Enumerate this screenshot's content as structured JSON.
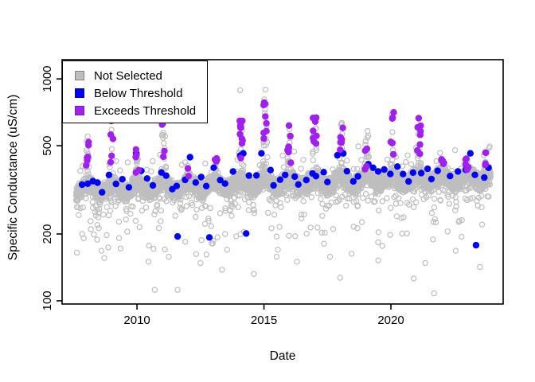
{
  "figure": {
    "background": "#FFFFFF"
  },
  "legend": {
    "items": [
      {
        "label": "Not Selected",
        "color": "#BEBEBE",
        "border": "#7F7F7F"
      },
      {
        "label": "Below Threshold",
        "color": "#0000FF",
        "border": "#00009E"
      },
      {
        "label": "Exceeds Threshold",
        "color": "#A020F0",
        "border": "#7A1ABD"
      }
    ]
  },
  "chart_data": {
    "type": "scatter",
    "title": "",
    "xlabel": "Date",
    "ylabel": "Specific Conductance (uS/cm)",
    "x_axis": {
      "domain": [
        2007.05,
        2024.42
      ],
      "ticks": [
        {
          "value": 2010,
          "label": "2010"
        },
        {
          "value": 2015,
          "label": "2015"
        },
        {
          "value": 2020,
          "label": "2020"
        }
      ]
    },
    "y_axis": {
      "domain": [
        96.7,
        1221
      ],
      "scale": "log10",
      "ticks": [
        {
          "value": 100,
          "label": "100"
        },
        {
          "value": 200,
          "label": "200"
        },
        {
          "value": 500,
          "label": "500"
        },
        {
          "value": 1000,
          "label": "1000"
        }
      ]
    },
    "grid": false,
    "legend_position": "topleft",
    "seed": 1337,
    "winter_spikes": [
      [
        2008.05,
        630,
        6,
        380,
        600
      ],
      [
        2009.0,
        780,
        7,
        420,
        740
      ],
      [
        2010.0,
        540,
        5,
        360,
        510
      ],
      [
        2011.05,
        800,
        8,
        400,
        690
      ],
      [
        2012.0,
        430,
        2,
        350,
        420
      ],
      [
        2013.1,
        470,
        4,
        360,
        450
      ],
      [
        2014.1,
        870,
        11,
        430,
        840
      ],
      [
        2015.05,
        1040,
        8,
        520,
        790
      ],
      [
        2016.0,
        720,
        7,
        400,
        680
      ],
      [
        2017.0,
        860,
        8,
        440,
        720
      ],
      [
        2018.05,
        760,
        7,
        460,
        640
      ],
      [
        2019.05,
        840,
        4,
        380,
        560
      ],
      [
        2020.05,
        740,
        6,
        420,
        730
      ],
      [
        2021.1,
        740,
        8,
        450,
        700
      ],
      [
        2022.0,
        510,
        4,
        380,
        445
      ],
      [
        2023.0,
        480,
        5,
        360,
        460
      ],
      [
        2023.7,
        500,
        4,
        400,
        480
      ]
    ],
    "series": [
      {
        "name": "Not Selected",
        "marker": "open-circle",
        "color": "#BEBEBE",
        "radius": 3.1,
        "generator": {
          "kind": "continuous-record",
          "t_start": 2007.6,
          "t_end": 2023.93,
          "step": 0.0038,
          "baseline_level": 318,
          "trend_per_year": 0.0085,
          "trend_ref_year": 2008,
          "seasonal_amplitude": 0.045,
          "seasonal_phase": 0.03,
          "noise": 0.11,
          "spike_window": 0.095,
          "spike_prob": 0.6,
          "spike_shape": 2.1,
          "dip_prob": 0.05,
          "dip_range": [
            0.78,
            0.93
          ],
          "tail_prob": 0.022,
          "tail_range": [
            0.52,
            0.8
          ],
          "bump_prob": 0.012,
          "bump_range": [
            1.12,
            1.35
          ]
        },
        "low_outliers": [
          [
            2008.6,
            168
          ],
          [
            2009.35,
            172
          ],
          [
            2010.45,
            150
          ],
          [
            2010.7,
            112
          ],
          [
            2011.25,
            158
          ],
          [
            2011.6,
            112
          ],
          [
            2012.5,
            148
          ],
          [
            2013.35,
            138
          ],
          [
            2013.55,
            170
          ],
          [
            2014.6,
            132
          ],
          [
            2015.5,
            158
          ],
          [
            2016.3,
            150
          ],
          [
            2017.6,
            158
          ],
          [
            2018.0,
            127
          ],
          [
            2018.45,
            163
          ],
          [
            2019.5,
            152
          ],
          [
            2020.9,
            126
          ],
          [
            2021.35,
            148
          ],
          [
            2021.7,
            108
          ],
          [
            2022.55,
            168
          ],
          [
            2023.5,
            142
          ]
        ]
      },
      {
        "name": "Below Threshold",
        "marker": "filled-circle",
        "color": "#0000FF",
        "radius": 4.2,
        "generator": {
          "kind": "periodic-samples",
          "t_start": 2007.75,
          "t_end": 2023.9,
          "step": 0.24,
          "x_jitter": 0.09,
          "rel_low": 1.0,
          "rel_high": 1.16,
          "winter_boost_prob": 0.32,
          "winter_boost_range": [
            1.12,
            1.42
          ],
          "max_value": 462
        },
        "outliers": [
          [
            2011.6,
            195
          ],
          [
            2012.85,
            193
          ],
          [
            2014.3,
            201
          ],
          [
            2023.35,
            178
          ]
        ]
      },
      {
        "name": "Exceeds Threshold",
        "marker": "filled-circle",
        "color": "#A020F0",
        "radius": 4.2,
        "generator": {
          "kind": "spike-samples",
          "x_jitter": 0.055,
          "height_bias": 0.85
        }
      }
    ]
  },
  "layout_note": "y axis is log-scaled; tick labels rotated 90 degrees as in base R graphics"
}
